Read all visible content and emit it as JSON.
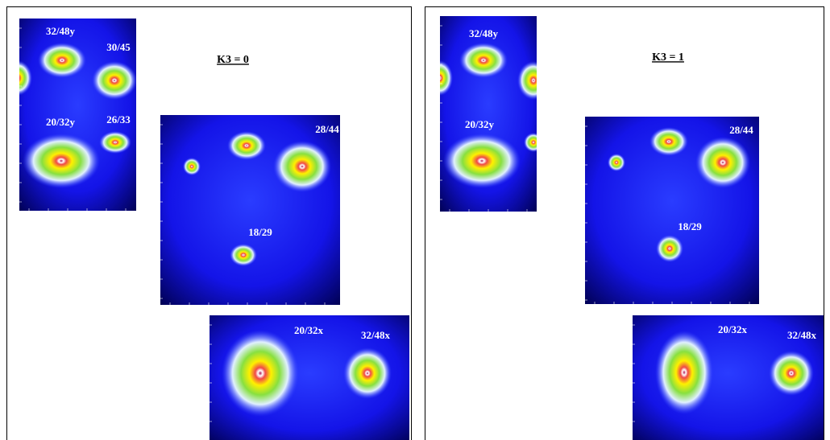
{
  "figures": [
    {
      "title": "K3 = 0",
      "panels": [
        {
          "labels": [
            "32/48y",
            "30/45",
            "20/32y",
            "26/33"
          ]
        },
        {
          "labels": [
            "28/44",
            "18/29"
          ]
        },
        {
          "labels": [
            "20/32x",
            "32/48x"
          ]
        }
      ]
    },
    {
      "title": "K3 = 1",
      "panels": [
        {
          "labels": [
            "32/48y",
            "20/32y"
          ]
        },
        {
          "labels": [
            "28/44",
            "18/29"
          ]
        },
        {
          "labels": [
            "20/32x",
            "32/48x"
          ]
        }
      ]
    }
  ]
}
